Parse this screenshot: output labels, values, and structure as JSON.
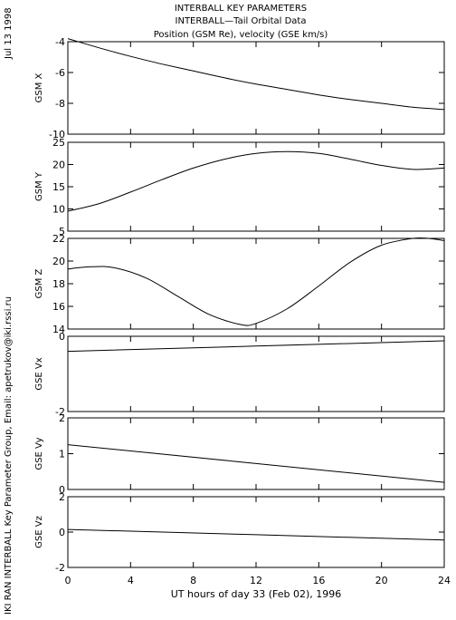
{
  "header": {
    "title_line1": "INTERBALL KEY PARAMETERS",
    "title_line2": "INTERBALL—Tail Orbital Data",
    "title_line3": "Position (GSM Re), velocity (GSE km/s)",
    "date_stamp": "Jul 13 1998",
    "credit": "IKI RAN INTERBALL Key Parameter Group, Email: apetrukov@iki.rssi.ru"
  },
  "chart_data": [
    {
      "type": "line",
      "ylabel": "GSM X",
      "ylim": [
        -10,
        -4
      ],
      "yticks": [
        -10,
        -8,
        -6,
        -4
      ],
      "xlim": [
        0,
        24
      ],
      "series": [
        {
          "x": [
            0,
            2,
            4,
            6,
            8,
            10,
            12,
            14,
            16,
            18,
            20,
            22,
            24
          ],
          "values": [
            -3.8,
            -4.4,
            -4.95,
            -5.45,
            -5.9,
            -6.35,
            -6.75,
            -7.1,
            -7.45,
            -7.75,
            -8.0,
            -8.25,
            -8.4
          ]
        }
      ]
    },
    {
      "type": "line",
      "ylabel": "GSM Y",
      "ylim": [
        5,
        25
      ],
      "yticks": [
        5,
        10,
        15,
        20,
        25
      ],
      "xlim": [
        0,
        24
      ],
      "series": [
        {
          "x": [
            0,
            2,
            4,
            6,
            8,
            10,
            12,
            14,
            16,
            18,
            20,
            22,
            24
          ],
          "values": [
            9.5,
            11.2,
            13.8,
            16.6,
            19.2,
            21.2,
            22.5,
            22.9,
            22.5,
            21.2,
            19.8,
            18.9,
            19.2
          ]
        }
      ]
    },
    {
      "type": "line",
      "ylabel": "GSM Z",
      "ylim": [
        14,
        22
      ],
      "yticks": [
        14,
        16,
        18,
        20,
        22
      ],
      "xlim": [
        0,
        24
      ],
      "series": [
        {
          "x": [
            0,
            1.5,
            3,
            5,
            7,
            9,
            11,
            12,
            14,
            16,
            18,
            20,
            22,
            23,
            24
          ],
          "values": [
            19.3,
            19.5,
            19.4,
            18.5,
            16.9,
            15.3,
            14.4,
            14.5,
            15.8,
            17.8,
            19.9,
            21.4,
            22.0,
            22.0,
            21.8
          ]
        }
      ]
    },
    {
      "type": "line",
      "ylabel": "GSE Vx",
      "ylim": [
        -2,
        0
      ],
      "yticks": [
        -2,
        0
      ],
      "xlim": [
        0,
        24
      ],
      "series": [
        {
          "x": [
            0,
            24
          ],
          "values": [
            -0.4,
            -0.12
          ]
        }
      ]
    },
    {
      "type": "line",
      "ylabel": "GSE Vy",
      "ylim": [
        0,
        2
      ],
      "yticks": [
        0,
        1,
        2
      ],
      "xlim": [
        0,
        24
      ],
      "series": [
        {
          "x": [
            0,
            24
          ],
          "values": [
            1.25,
            0.2
          ]
        }
      ]
    },
    {
      "type": "line",
      "ylabel": "GSE Vz",
      "ylim": [
        -2,
        2
      ],
      "yticks": [
        -2,
        0,
        2
      ],
      "xlim": [
        0,
        24
      ],
      "series": [
        {
          "x": [
            0,
            24
          ],
          "values": [
            0.15,
            -0.45
          ]
        }
      ]
    }
  ],
  "x_axis": {
    "ticks": [
      0,
      4,
      8,
      12,
      16,
      20,
      24
    ],
    "label": "UT hours of day  33 (Feb 02), 1996"
  }
}
